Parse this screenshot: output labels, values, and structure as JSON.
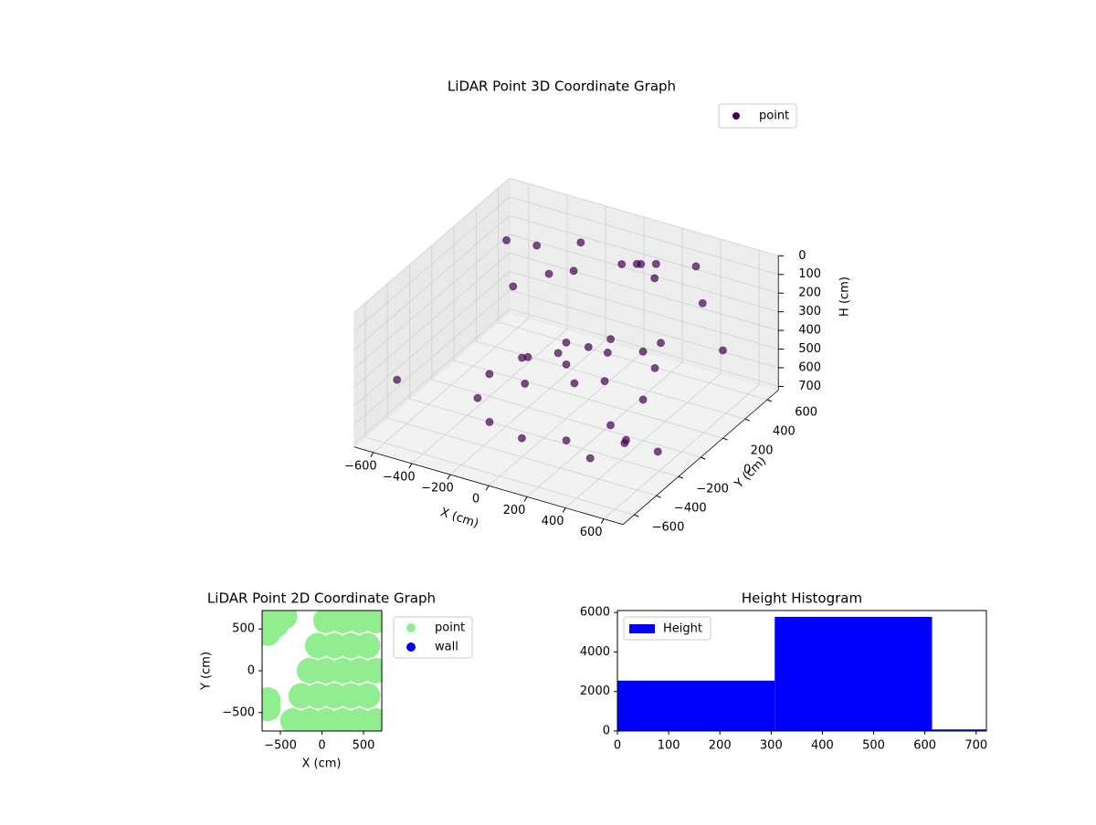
{
  "chart_data": [
    {
      "type": "scatter3d",
      "title": "LiDAR Point 3D Coordinate Graph",
      "xlabel": "X (cm)",
      "ylabel": "Y (cm)",
      "zlabel": "H (cm)",
      "legend": "upper right",
      "xlim": [
        -700,
        700
      ],
      "ylim": [
        -700,
        700
      ],
      "zlim": [
        0,
        720
      ],
      "zinverted": true,
      "xticks": [
        {
          "value": -600,
          "label": "−600"
        },
        {
          "value": -400,
          "label": "−400"
        },
        {
          "value": -200,
          "label": "−200"
        },
        0,
        200,
        400,
        600
      ],
      "yticks": [
        {
          "value": -600,
          "label": "−600"
        },
        {
          "value": -400,
          "label": "−400"
        },
        {
          "value": -200,
          "label": "−200"
        },
        0,
        200,
        400,
        600
      ],
      "zticks": [
        0,
        100,
        200,
        300,
        400,
        500,
        600,
        700
      ],
      "series": [
        {
          "name": "point",
          "color": "#440154",
          "x": [
            -400,
            -346,
            -200,
            0,
            200,
            346,
            400,
            346,
            200,
            0,
            -200,
            -346,
            -200,
            -100,
            0,
            100,
            200,
            -100,
            0,
            100,
            0,
            100,
            200,
            50,
            150,
            -600,
            -500,
            650,
            600,
            500,
            -300,
            300,
            -650,
            700,
            650,
            -450,
            -350,
            -250,
            450,
            550
          ],
          "y": [
            0,
            200,
            346,
            400,
            346,
            200,
            0,
            -200,
            -346,
            -400,
            -346,
            -200,
            0,
            100,
            0,
            -100,
            0,
            -200,
            200,
            200,
            500,
            500,
            450,
            550,
            550,
            500,
            600,
            -600,
            -500,
            -650,
            650,
            650,
            -400,
            200,
            -300,
            300,
            450,
            500,
            450,
            -100
          ],
          "z": [
            600,
            600,
            550,
            500,
            480,
            450,
            500,
            550,
            600,
            620,
            620,
            610,
            450,
            450,
            430,
            450,
            460,
            460,
            440,
            440,
            150,
            120,
            140,
            160,
            130,
            200,
            250,
            350,
            400,
            450,
            200,
            150,
            500,
            250,
            550,
            300,
            280,
            260,
            200,
            100
          ]
        }
      ]
    },
    {
      "type": "scatter",
      "title": "LiDAR Point 2D Coordinate Graph",
      "xlabel": "X (cm)",
      "ylabel": "Y (cm)",
      "legend": "outside upper right",
      "xlim": [
        -720,
        720
      ],
      "ylim": [
        -720,
        720
      ],
      "xticks": [
        {
          "value": -500,
          "label": "−500"
        },
        0,
        500
      ],
      "yticks": [
        {
          "value": -500,
          "label": "−500"
        },
        0,
        500
      ],
      "series": [
        {
          "name": "point",
          "color": "#90ee90",
          "x": [
            -650,
            -550,
            -450,
            -650,
            -550,
            -650,
            -650,
            -650,
            -350,
            -150,
            50,
            250,
            450,
            650,
            -250,
            -50,
            150,
            350,
            550,
            -150,
            50,
            250,
            450,
            650,
            -50,
            150,
            350,
            550,
            50,
            250,
            450,
            650
          ],
          "y": [
            650,
            650,
            650,
            550,
            550,
            450,
            -350,
            -450,
            -600,
            -600,
            -600,
            -600,
            -600,
            -600,
            -300,
            -300,
            -300,
            -300,
            -300,
            0,
            0,
            0,
            0,
            0,
            300,
            300,
            300,
            300,
            600,
            600,
            600,
            600
          ]
        },
        {
          "name": "wall",
          "color": "#0000ff",
          "x": [],
          "y": []
        }
      ]
    },
    {
      "type": "histogram",
      "title": "Height Histogram",
      "legend": "upper left",
      "series": [
        {
          "name": "Height",
          "color": "#0000ff",
          "bins": [
            0,
            307,
            614,
            721
          ],
          "values": [
            2550,
            5780,
            80
          ]
        }
      ],
      "xlim": [
        0,
        720
      ],
      "ylim": [
        0,
        6100
      ],
      "xticks": [
        0,
        100,
        200,
        300,
        400,
        500,
        600,
        700
      ],
      "yticks": [
        0,
        2000,
        4000,
        6000
      ]
    }
  ]
}
